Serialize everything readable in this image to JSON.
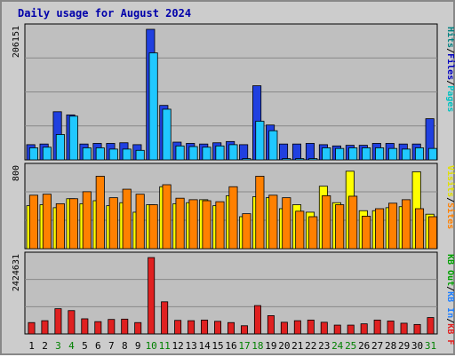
{
  "title": "Daily usage for August 2024",
  "colors": {
    "background": "#cccccc",
    "panel": "#bfbfbf",
    "title": "#0000aa",
    "hits": "#2040e0",
    "files": "#20c8ff",
    "pages": "#00e0e0",
    "visits": "#ffff00",
    "sites": "#ff8000",
    "kb_f": "#e02020",
    "kb_in": "#3080ff",
    "kb_out": "#00c000",
    "weekend_label": "#008000",
    "weekday_label": "#000000"
  },
  "right_labels": {
    "top": [
      {
        "text": "Hits",
        "color_key": "hits_label"
      },
      {
        "text": "/",
        "color_key": "sep"
      },
      {
        "text": "Files",
        "color_key": "files_label"
      },
      {
        "text": "/",
        "color_key": "sep"
      },
      {
        "text": "Pages",
        "color_key": "pages_label"
      }
    ],
    "mid": [
      {
        "text": "Visits",
        "color_key": "visits_label"
      },
      {
        "text": "/",
        "color_key": "sep"
      },
      {
        "text": "Sites",
        "color_key": "sites_label"
      }
    ],
    "bottom": [
      {
        "text": "KB Out",
        "color_key": "kbout_label"
      },
      {
        "text": "/",
        "color_key": "sep"
      },
      {
        "text": "KB In",
        "color_key": "kbin_label"
      },
      {
        "text": "/",
        "color_key": "sep"
      },
      {
        "text": "KB F",
        "color_key": "kbf_label"
      }
    ]
  },
  "label_colors": {
    "hits_label": "#008080",
    "files_label": "#0000c0",
    "pages_label": "#00c0c0",
    "visits_label": "#e0e000",
    "sites_label": "#ff8000",
    "kbout_label": "#00a000",
    "kbin_label": "#2080ff",
    "kbf_label": "#e02020",
    "sep": "#000000"
  },
  "chart_data": [
    {
      "type": "bar",
      "panel": "hits-files-pages",
      "y_max_label": "206151",
      "ylim": [
        0,
        206151
      ],
      "categories": [
        "1",
        "2",
        "3",
        "4",
        "5",
        "6",
        "7",
        "8",
        "9",
        "10",
        "11",
        "12",
        "13",
        "14",
        "15",
        "16",
        "17",
        "18",
        "19",
        "20",
        "21",
        "22",
        "23",
        "24",
        "25",
        "26",
        "27",
        "28",
        "29",
        "30",
        "31"
      ],
      "weekend": [
        3,
        4,
        10,
        11,
        17,
        18,
        24,
        25,
        31
      ],
      "series": [
        {
          "key": "hits",
          "values": [
            24000,
            25000,
            76000,
            71000,
            25000,
            26000,
            26000,
            27000,
            24000,
            206151,
            86000,
            28000,
            26000,
            25000,
            27000,
            29000,
            24000,
            117000,
            55000,
            25000,
            25000,
            26000,
            24000,
            22000,
            23000,
            23000,
            26000,
            26000,
            25000,
            25000,
            65000
          ]
        },
        {
          "key": "files",
          "values": [
            19000,
            20000,
            40000,
            69000,
            19000,
            19000,
            17000,
            17000,
            15000,
            169000,
            80000,
            22000,
            21000,
            20000,
            22000,
            24000,
            2000,
            61000,
            46000,
            2000,
            2000,
            2000,
            19000,
            18000,
            19000,
            19000,
            19000,
            18000,
            17000,
            19000,
            18000
          ]
        }
      ]
    },
    {
      "type": "bar",
      "panel": "visits-sites",
      "y_max_label": "800",
      "ylim": [
        0,
        800
      ],
      "categories": [
        "1",
        "2",
        "3",
        "4",
        "5",
        "6",
        "7",
        "8",
        "9",
        "10",
        "11",
        "12",
        "13",
        "14",
        "15",
        "16",
        "17",
        "18",
        "19",
        "20",
        "21",
        "22",
        "23",
        "24",
        "25",
        "26",
        "27",
        "28",
        "29",
        "30",
        "31"
      ],
      "series": [
        {
          "key": "visits",
          "values": [
            430,
            440,
            410,
            500,
            450,
            480,
            430,
            460,
            365,
            440,
            620,
            450,
            460,
            490,
            430,
            530,
            320,
            520,
            510,
            400,
            440,
            365,
            625,
            460,
            775,
            380,
            380,
            410,
            420,
            770,
            345
          ]
        },
        {
          "key": "sites",
          "values": [
            535,
            545,
            450,
            500,
            570,
            725,
            510,
            595,
            545,
            440,
            640,
            505,
            490,
            480,
            470,
            620,
            350,
            725,
            535,
            510,
            375,
            320,
            530,
            440,
            525,
            325,
            400,
            455,
            490,
            400,
            320
          ]
        }
      ]
    },
    {
      "type": "bar",
      "panel": "kb",
      "y_max_label": "2424631",
      "ylim": [
        0,
        2424631
      ],
      "categories": [
        "1",
        "2",
        "3",
        "4",
        "5",
        "6",
        "7",
        "8",
        "9",
        "10",
        "11",
        "12",
        "13",
        "14",
        "15",
        "16",
        "17",
        "18",
        "19",
        "20",
        "21",
        "22",
        "23",
        "24",
        "25",
        "26",
        "27",
        "28",
        "29",
        "30",
        "31"
      ],
      "series": [
        {
          "key": "kb_f",
          "values": [
            360000,
            420000,
            800000,
            740000,
            480000,
            390000,
            460000,
            470000,
            360000,
            2424631,
            1020000,
            430000,
            420000,
            440000,
            400000,
            360000,
            260000,
            900000,
            580000,
            370000,
            420000,
            440000,
            370000,
            280000,
            280000,
            320000,
            440000,
            410000,
            340000,
            300000,
            520000
          ]
        }
      ]
    }
  ]
}
